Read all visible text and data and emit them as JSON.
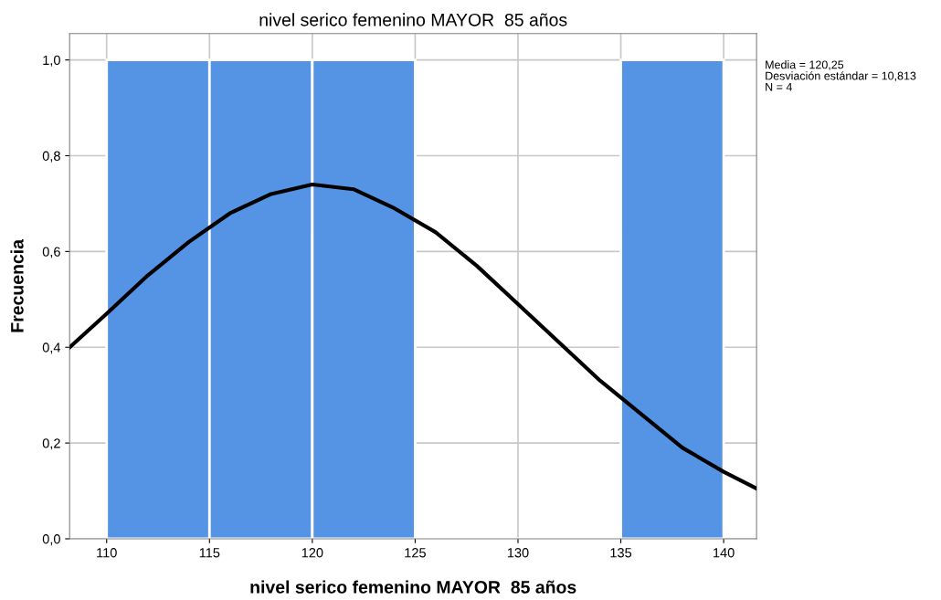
{
  "chart_data": {
    "type": "histogram",
    "title": "nivel serico femenino MAYOR  85 años",
    "xlabel": "nivel serico femenino MAYOR  85 años",
    "ylabel": "Frecuencia",
    "bins": [
      110,
      115,
      120,
      125,
      130,
      135,
      140
    ],
    "values": [
      1,
      1,
      1,
      0,
      0,
      1
    ],
    "color": "#5594e5",
    "series": [
      {
        "type": "line",
        "color": "#000000",
        "x": [
          108.2,
          110,
          112,
          114,
          116,
          118,
          120,
          122,
          124,
          126,
          128,
          130,
          132,
          134,
          136,
          138,
          140,
          141.6
        ],
        "values": [
          0.4,
          0.47,
          0.55,
          0.62,
          0.68,
          0.72,
          0.74,
          0.73,
          0.69,
          0.64,
          0.57,
          0.49,
          0.41,
          0.33,
          0.26,
          0.19,
          0.14,
          0.105
        ]
      }
    ],
    "xlim": [
      108.2,
      141.6
    ],
    "ylim": [
      0,
      1.055
    ],
    "xticks": [
      110,
      115,
      120,
      125,
      130,
      135,
      140
    ],
    "yticks": [
      {
        "value": 0,
        "label": "0,0"
      },
      {
        "value": 0.2,
        "label": "0,2"
      },
      {
        "value": 0.4,
        "label": "0,4"
      },
      {
        "value": 0.6,
        "label": "0,6"
      },
      {
        "value": 0.8,
        "label": "0,8"
      },
      {
        "value": 1.0,
        "label": "1,0"
      }
    ],
    "grid": true,
    "annotations": [
      "Media = 120,25",
      "Desviación estándar = 10,813",
      "N = 4"
    ]
  }
}
